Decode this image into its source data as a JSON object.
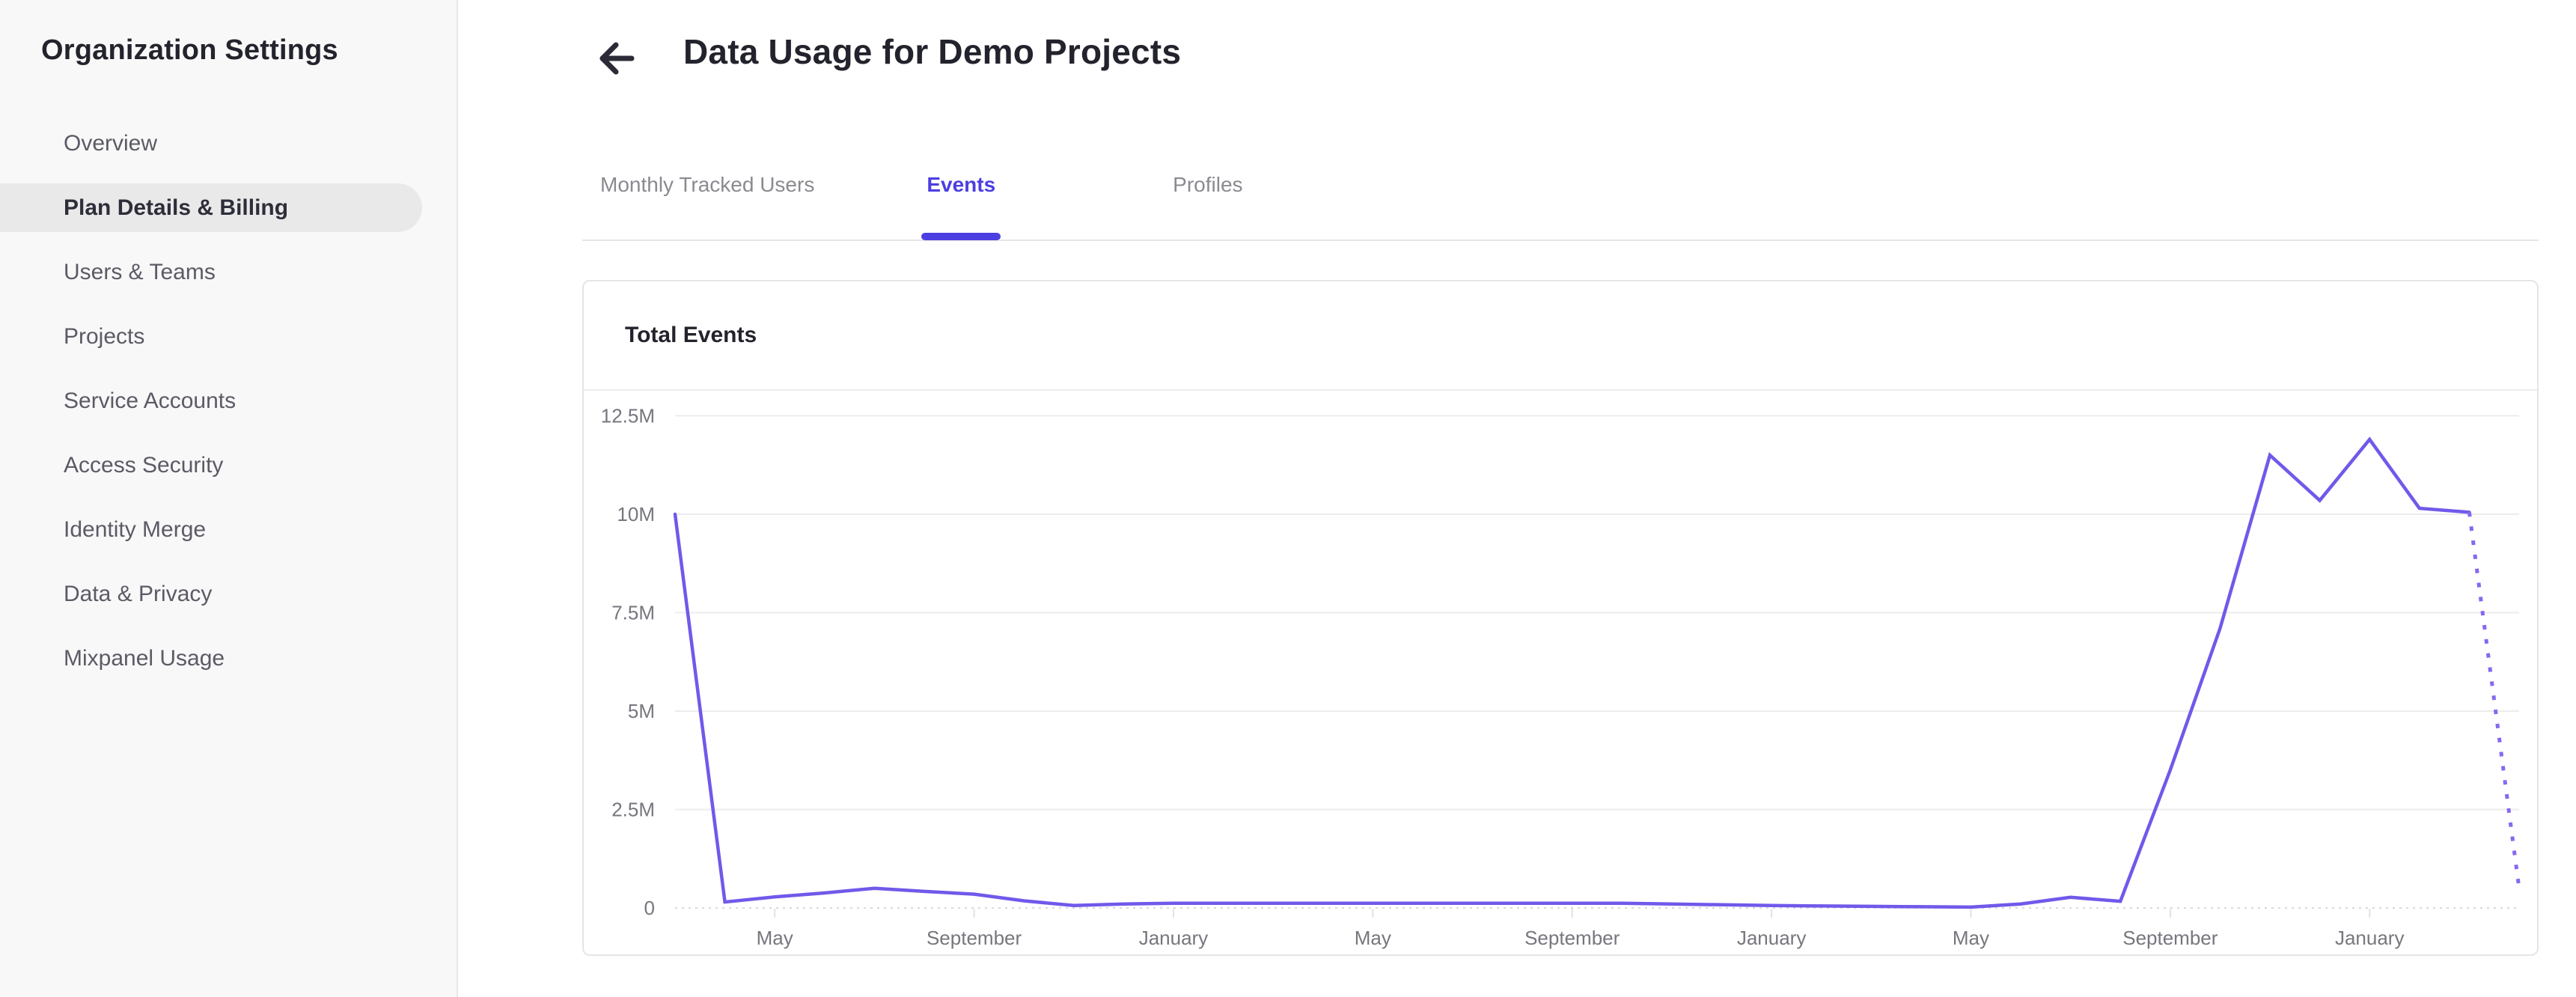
{
  "sidebar": {
    "title": "Organization Settings",
    "items": [
      {
        "label": "Overview",
        "active": false
      },
      {
        "label": "Plan Details & Billing",
        "active": true
      },
      {
        "label": "Users & Teams",
        "active": false
      },
      {
        "label": "Projects",
        "active": false
      },
      {
        "label": "Service Accounts",
        "active": false
      },
      {
        "label": "Access Security",
        "active": false
      },
      {
        "label": "Identity Merge",
        "active": false
      },
      {
        "label": "Data & Privacy",
        "active": false
      },
      {
        "label": "Mixpanel Usage",
        "active": false
      }
    ]
  },
  "header": {
    "title": "Data Usage for Demo Projects"
  },
  "tabs": [
    {
      "label": "Monthly Tracked Users",
      "active": false
    },
    {
      "label": "Events",
      "active": true
    },
    {
      "label": "Profiles",
      "active": false
    }
  ],
  "card": {
    "title": "Total Events"
  },
  "colors": {
    "accent": "#4c3fe1",
    "line": "#7258ea",
    "line_projected": "#8668ef",
    "grid": "#ececec",
    "baseline": "#d9d9d9",
    "tick": "#e2e2e4",
    "axis_text": "#76767e",
    "title_text": "#23232d"
  },
  "chart_data": {
    "type": "line",
    "title": "Total Events",
    "series_name": "Total Events",
    "unit": "events (millions)",
    "start_month": "March (year 1)",
    "months_per_point": 1,
    "values_millions": [
      10,
      0.15,
      0.28,
      0.38,
      0.5,
      0.42,
      0.35,
      0.18,
      0.06,
      0.1,
      0.12,
      0.12,
      0.12,
      0.12,
      0.12,
      0.12,
      0.12,
      0.12,
      0.12,
      0.12,
      0.1,
      0.08,
      0.06,
      0.05,
      0.04,
      0.03,
      0.02,
      0.1,
      0.27,
      0.17,
      3.5,
      7.1,
      11.5,
      10.35,
      11.9,
      10.15,
      10.05,
      0.5
    ],
    "solid_until_index": 36,
    "projection_style": "dotted",
    "y_axis": {
      "ticks": [
        {
          "value": 0,
          "label": "0"
        },
        {
          "value": 2.5,
          "label": "2.5M"
        },
        {
          "value": 5,
          "label": "5M"
        },
        {
          "value": 7.5,
          "label": "7.5M"
        },
        {
          "value": 10,
          "label": "10M"
        },
        {
          "value": 12.5,
          "label": "12.5M"
        }
      ],
      "range": [
        0,
        12.5
      ],
      "grid": true
    },
    "x_axis": {
      "ticks": [
        {
          "index": 2,
          "label": "May"
        },
        {
          "index": 6,
          "label": "September"
        },
        {
          "index": 10,
          "label": "January"
        },
        {
          "index": 14,
          "label": "May"
        },
        {
          "index": 18,
          "label": "September"
        },
        {
          "index": 22,
          "label": "January"
        },
        {
          "index": 26,
          "label": "May"
        },
        {
          "index": 30,
          "label": "September"
        },
        {
          "index": 34,
          "label": "January"
        }
      ]
    },
    "legend": "none"
  }
}
